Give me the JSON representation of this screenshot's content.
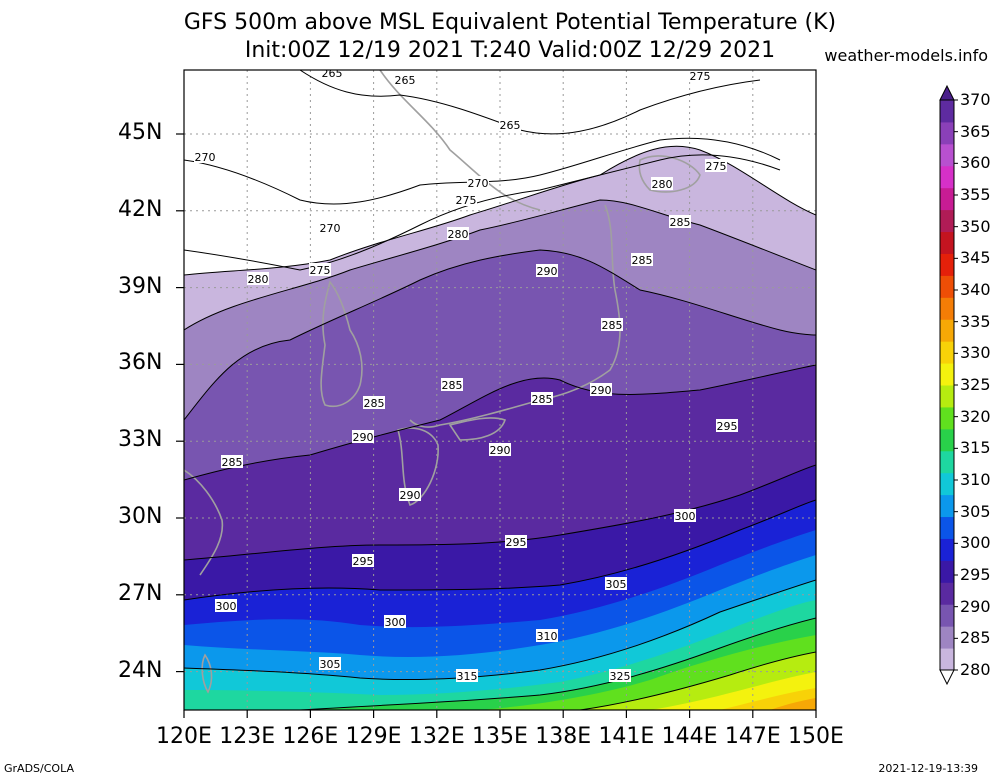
{
  "title": {
    "line1": "GFS 500m above MSL Equivalent Potential Temperature (K)",
    "line2": "Init:00Z 12/19 2021 T:240 Valid:00Z 12/29 2021"
  },
  "credit": "weather-models.info",
  "footer": {
    "left": "GrADS/COLA",
    "right": "2021-12-19-13:39"
  },
  "map": {
    "variable": "Equivalent Potential Temperature",
    "units": "K",
    "lon_range": [
      120,
      150
    ],
    "lat_range": [
      22.5,
      47.5
    ],
    "lon_ticks": [
      "120E",
      "123E",
      "126E",
      "129E",
      "132E",
      "135E",
      "138E",
      "141E",
      "144E",
      "147E",
      "150E"
    ],
    "lat_ticks": [
      "24N",
      "27N",
      "30N",
      "33N",
      "36N",
      "39N",
      "42N",
      "45N"
    ],
    "contour_labels": [
      "265",
      "265",
      "265",
      "270",
      "270",
      "270",
      "275",
      "275",
      "275",
      "275",
      "280",
      "280",
      "280",
      "285",
      "285",
      "285",
      "285",
      "285",
      "285",
      "285",
      "290",
      "290",
      "290",
      "290",
      "290",
      "295",
      "295",
      "295",
      "300",
      "300",
      "300",
      "305",
      "305",
      "310",
      "315",
      "325"
    ]
  },
  "colorbar": {
    "levels": [
      "370",
      "365",
      "360",
      "355",
      "350",
      "345",
      "340",
      "335",
      "330",
      "325",
      "320",
      "315",
      "310",
      "305",
      "300",
      "295",
      "290",
      "285",
      "280"
    ],
    "colors": [
      "#c9b6de",
      "#9e85c2",
      "#7855b0",
      "#5a2aa0",
      "#3a18a6",
      "#1a22d6",
      "#0b55e8",
      "#0b98ec",
      "#11c8d8",
      "#1ed7a0",
      "#29d14a",
      "#60e01e",
      "#b6ec10",
      "#f4f20e",
      "#f8d208",
      "#f6a806",
      "#f47d06",
      "#ee4e06",
      "#e4200a",
      "#c41420",
      "#b01c56",
      "#c81c94",
      "#d630c8",
      "#b850d0",
      "#8a40b8",
      "#5e2ba0"
    ]
  }
}
